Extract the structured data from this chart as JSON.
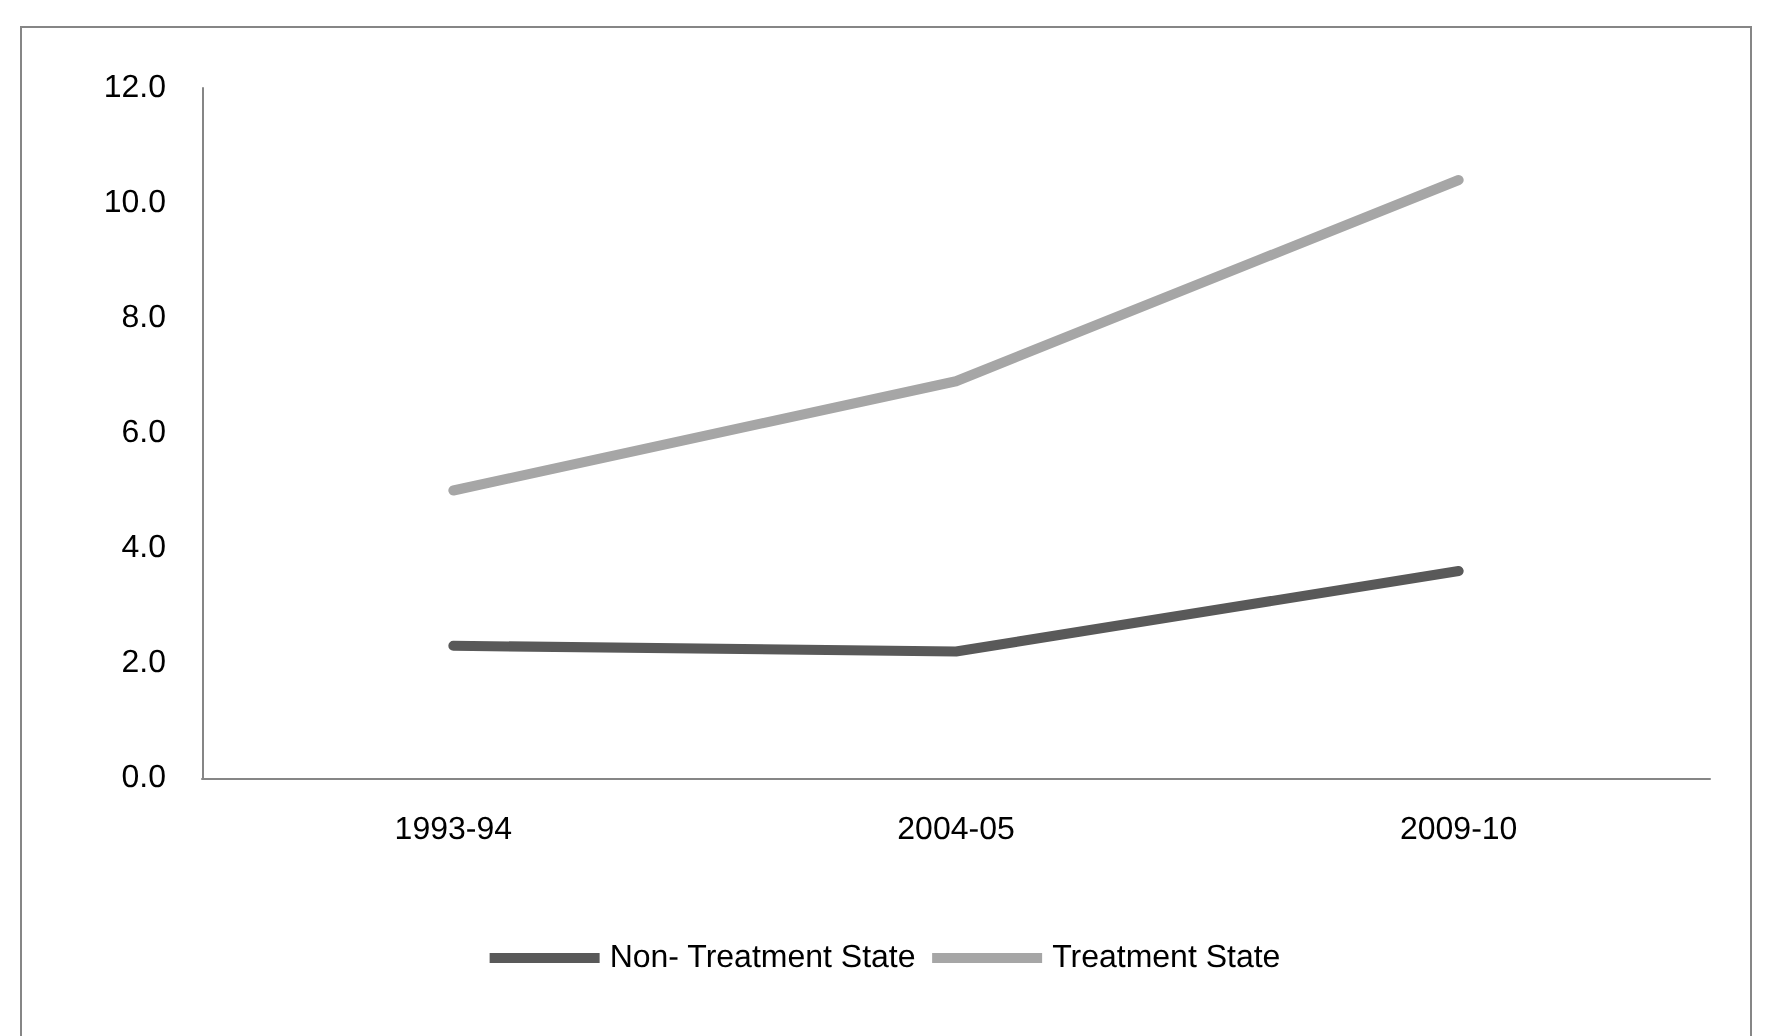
{
  "chart_data": {
    "type": "line",
    "categories": [
      "1993-94",
      "2004-05",
      "2009-10"
    ],
    "series": [
      {
        "name": "Non- Treatment State",
        "color": "#595959",
        "values": [
          2.3,
          2.2,
          3.6
        ]
      },
      {
        "name": "Treatment State",
        "color": "#a6a6a6",
        "values": [
          5.0,
          6.9,
          10.4
        ]
      }
    ],
    "ylim": [
      0,
      12
    ],
    "yticks": [
      {
        "value": 0,
        "label": "0.0"
      },
      {
        "value": 2,
        "label": "2.0"
      },
      {
        "value": 4,
        "label": "4.0"
      },
      {
        "value": 6,
        "label": "6.0"
      },
      {
        "value": 8,
        "label": "8.0"
      },
      {
        "value": 10,
        "label": "10.0"
      },
      {
        "value": 12,
        "label": "12.0"
      }
    ],
    "grid": false,
    "legend": "bottom",
    "marker": "none",
    "line_style": "solid"
  }
}
